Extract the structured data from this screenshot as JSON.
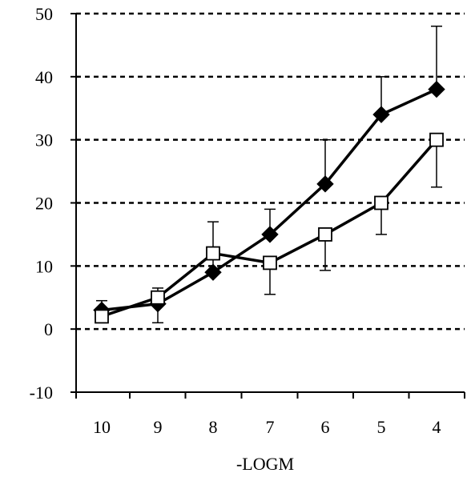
{
  "chart_data": {
    "type": "line",
    "title": "",
    "xlabel": "-LOGM",
    "ylabel": "",
    "categories": [
      "10",
      "9",
      "8",
      "7",
      "6",
      "5",
      "4"
    ],
    "ylim": [
      -10,
      50
    ],
    "yticks": [
      -10,
      0,
      10,
      20,
      30,
      40,
      50
    ],
    "grid": true,
    "grid_style": "dashed-horizontal",
    "legend": "none",
    "series": [
      {
        "marker": "filled-diamond",
        "color": "#000000",
        "values": [
          3,
          4,
          9,
          15,
          23,
          34,
          38
        ],
        "error_upper": [
          1.5,
          2.5,
          8,
          4,
          7,
          6,
          10
        ],
        "error_lower": [
          0,
          0,
          0,
          0,
          0,
          0,
          0
        ]
      },
      {
        "marker": "open-square",
        "color": "#000000",
        "values": [
          2,
          5,
          12,
          10.5,
          15,
          20,
          30
        ],
        "error_upper": [
          0,
          0,
          0,
          0,
          0,
          0,
          0
        ],
        "error_lower": [
          0,
          4,
          0,
          5,
          5.7,
          5,
          7.5
        ]
      }
    ]
  }
}
